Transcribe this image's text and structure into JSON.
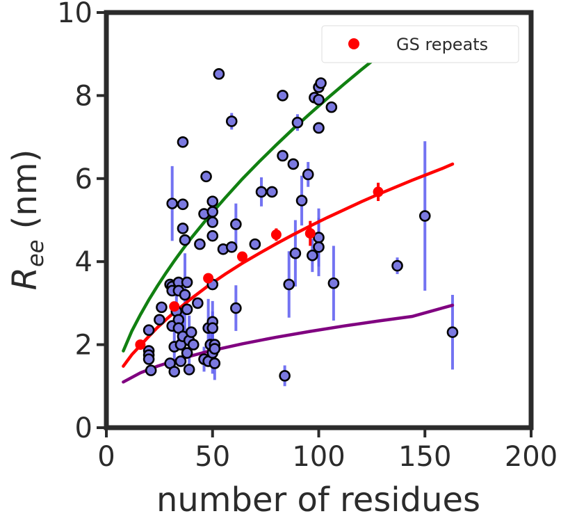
{
  "chart_data": {
    "type": "scatter",
    "title": "",
    "xlabel": "number of residues",
    "ylabel_main": "R",
    "ylabel_sub": "ee",
    "ylabel_unit": " (nm)",
    "xlim": [
      0,
      200
    ],
    "ylim": [
      0,
      10
    ],
    "xticks": [
      0,
      50,
      100,
      150,
      200
    ],
    "yticks": [
      0,
      2,
      4,
      6,
      8,
      10
    ],
    "grid": false,
    "legend_position": "top-right",
    "colors": {
      "points_fill": "#7b79e0",
      "points_edge": "#000000",
      "error_bar": "#5a5af0",
      "gs": "#ff0000",
      "green": "#118011",
      "purple": "#800080",
      "axis": "#2b2b2b"
    },
    "legend": [
      {
        "label": "GS repeats",
        "color": "#ff0000"
      }
    ],
    "series": [
      {
        "kind": "scatter_with_error",
        "points": [
          [
            20,
            2.35,
            0
          ],
          [
            20,
            1.85,
            0
          ],
          [
            20,
            1.75,
            0
          ],
          [
            20,
            1.65,
            0
          ],
          [
            21,
            1.38,
            0
          ],
          [
            25,
            2.6,
            0
          ],
          [
            26,
            2.9,
            0
          ],
          [
            30,
            3.45,
            0
          ],
          [
            31,
            3.4,
            0
          ],
          [
            31,
            3.3,
            0
          ],
          [
            30,
            1.55,
            0
          ],
          [
            31,
            2.45,
            0
          ],
          [
            31,
            5.4,
            0.9
          ],
          [
            32,
            1.95,
            0.5
          ],
          [
            32,
            1.35,
            0
          ],
          [
            33,
            2.8,
            0.5
          ],
          [
            34,
            3.5,
            0
          ],
          [
            34,
            3.3,
            0
          ],
          [
            34,
            2.6,
            0
          ],
          [
            34,
            2.4,
            0.5
          ],
          [
            35,
            2.0,
            0
          ],
          [
            35,
            1.6,
            0
          ],
          [
            36,
            2.2,
            0.6
          ],
          [
            36,
            4.8,
            0
          ],
          [
            36,
            5.38,
            0
          ],
          [
            36,
            6.88,
            0
          ],
          [
            37,
            4.52,
            0
          ],
          [
            37,
            3.2,
            1.0
          ],
          [
            38,
            3.5,
            0
          ],
          [
            38,
            2.85,
            0
          ],
          [
            38,
            1.8,
            0
          ],
          [
            39,
            2.1,
            0.6
          ],
          [
            39,
            1.4,
            0
          ],
          [
            40,
            2.3,
            0
          ],
          [
            41,
            2.0,
            0
          ],
          [
            43,
            3.0,
            0
          ],
          [
            44,
            4.42,
            0
          ],
          [
            46,
            5.15,
            0
          ],
          [
            46,
            1.65,
            0.3
          ],
          [
            47,
            6.05,
            0
          ],
          [
            48,
            2.4,
            0.7
          ],
          [
            48,
            1.6,
            0
          ],
          [
            49,
            2.0,
            0.5
          ],
          [
            50,
            5.45,
            0
          ],
          [
            50,
            5.2,
            0
          ],
          [
            50,
            4.95,
            0
          ],
          [
            50,
            4.62,
            0
          ],
          [
            50,
            3.45,
            0
          ],
          [
            50,
            2.55,
            0.5
          ],
          [
            50,
            2.4,
            0.4
          ],
          [
            50,
            1.8,
            0.5
          ],
          [
            51,
            2.0,
            0
          ],
          [
            51,
            1.9,
            0
          ],
          [
            51,
            1.55,
            0.4
          ],
          [
            53,
            8.52,
            0
          ],
          [
            55,
            4.3,
            0
          ],
          [
            59,
            4.35,
            0
          ],
          [
            59,
            7.38,
            0.2
          ],
          [
            61,
            4.9,
            0.5
          ],
          [
            61,
            2.88,
            0.55
          ],
          [
            70,
            4.42,
            0
          ],
          [
            73,
            5.68,
            0.35
          ],
          [
            78,
            5.68,
            0
          ],
          [
            83,
            8.0,
            0
          ],
          [
            83,
            6.55,
            0
          ],
          [
            84,
            1.25,
            0.25
          ],
          [
            86,
            3.45,
            0.8
          ],
          [
            88,
            6.35,
            0
          ],
          [
            89,
            4.2,
            0.8
          ],
          [
            90,
            7.35,
            0.2
          ],
          [
            92,
            5.47,
            0.6
          ],
          [
            95,
            6.1,
            0.3
          ],
          [
            97,
            4.15,
            0.4
          ],
          [
            98,
            7.95,
            0
          ],
          [
            100,
            7.9,
            0
          ],
          [
            100,
            8.2,
            0
          ],
          [
            100,
            7.22,
            0
          ],
          [
            100,
            4.58,
            0.7
          ],
          [
            100,
            4.35,
            0.7
          ],
          [
            101,
            8.3,
            0
          ],
          [
            106,
            7.72,
            0
          ],
          [
            107,
            3.48,
            0.9
          ],
          [
            137,
            3.9,
            0.2
          ],
          [
            150,
            5.1,
            1.8
          ],
          [
            163,
            2.3,
            0.9
          ]
        ]
      },
      {
        "kind": "gs_points",
        "points": [
          [
            16,
            2.0,
            0
          ],
          [
            32,
            2.92,
            0.1
          ],
          [
            48,
            3.6,
            0.12
          ],
          [
            64,
            4.12,
            0.1
          ],
          [
            80,
            4.65,
            0.15
          ],
          [
            96,
            4.68,
            0.3
          ],
          [
            128,
            5.68,
            0.22
          ]
        ]
      },
      {
        "kind": "curve",
        "color_key": "gs",
        "x": [
          8,
          12,
          16,
          20,
          24,
          28,
          32,
          40,
          48,
          56,
          64,
          72,
          80,
          88,
          96,
          104,
          112,
          120,
          128,
          136,
          144,
          152,
          158,
          163
        ],
        "y": [
          1.48,
          1.76,
          1.98,
          2.2,
          2.41,
          2.6,
          2.78,
          3.11,
          3.42,
          3.7,
          3.96,
          4.2,
          4.43,
          4.65,
          4.86,
          5.06,
          5.25,
          5.44,
          5.62,
          5.79,
          5.96,
          6.12,
          6.24,
          6.35
        ]
      },
      {
        "kind": "curve",
        "color_key": "green",
        "x": [
          8,
          12,
          16,
          20,
          24,
          28,
          32,
          36,
          40,
          48,
          56,
          64,
          72,
          80,
          88,
          96,
          104,
          112,
          120,
          128,
          136,
          138
        ],
        "y": [
          1.85,
          2.33,
          2.72,
          3.08,
          3.41,
          3.72,
          4.02,
          4.3,
          4.57,
          5.07,
          5.54,
          5.99,
          6.41,
          6.81,
          7.2,
          7.57,
          7.93,
          8.28,
          8.62,
          8.95,
          9.27,
          9.35
        ]
      },
      {
        "kind": "curve",
        "color_key": "purple",
        "x": [
          8,
          16,
          24,
          32,
          40,
          48,
          56,
          64,
          80,
          96,
          112,
          128,
          144,
          163
        ],
        "y": [
          1.1,
          1.32,
          1.48,
          1.61,
          1.73,
          1.84,
          1.93,
          2.02,
          2.18,
          2.32,
          2.45,
          2.57,
          2.68,
          2.95
        ]
      }
    ]
  }
}
